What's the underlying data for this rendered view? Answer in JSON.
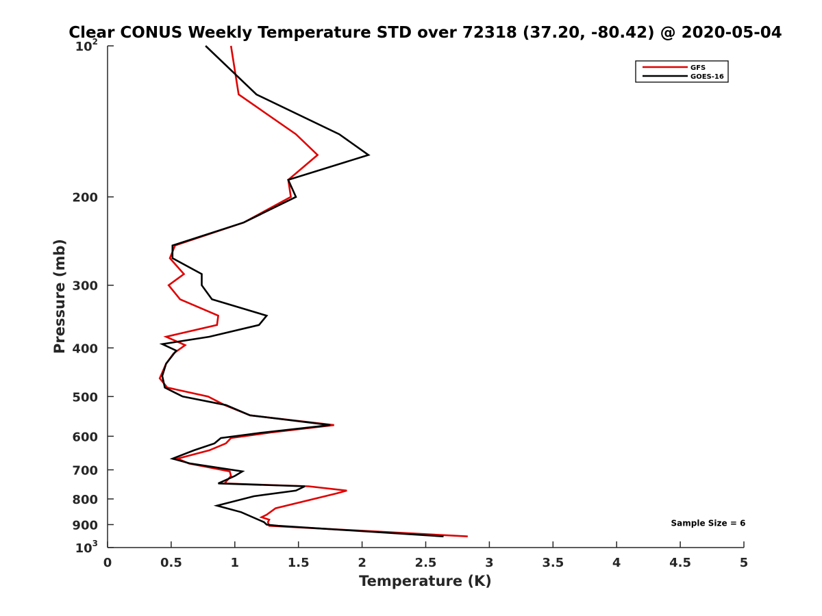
{
  "chart_data": {
    "type": "line",
    "title": "Clear CONUS Weekly Temperature STD over 72318 (37.20, -80.42) @ 2020-05-04",
    "xlabel": "Temperature (K)",
    "ylabel": "Pressure (mb)",
    "xlim": [
      0,
      5
    ],
    "ylim": [
      100,
      1000
    ],
    "y_scale": "log",
    "y_reversed": true,
    "x_ticks": [
      "0",
      "0.5",
      "1",
      "1.5",
      "2",
      "2.5",
      "3",
      "3.5",
      "4",
      "4.5",
      "5"
    ],
    "x_tick_values": [
      0,
      0.5,
      1,
      1.5,
      2,
      2.5,
      3,
      3.5,
      4,
      4.5,
      5
    ],
    "y_ticks": [
      {
        "value": 100,
        "base": "10",
        "exp": "2"
      },
      {
        "value": 200,
        "label": "200"
      },
      {
        "value": 300,
        "label": "300"
      },
      {
        "value": 400,
        "label": "400"
      },
      {
        "value": 500,
        "label": "500"
      },
      {
        "value": 600,
        "label": "600"
      },
      {
        "value": 700,
        "label": "700"
      },
      {
        "value": 800,
        "label": "800"
      },
      {
        "value": 900,
        "label": "900"
      },
      {
        "value": 1000,
        "base": "10",
        "exp": "3"
      }
    ],
    "grid": false,
    "legend_position": "top-right",
    "series": [
      {
        "name": "GFS",
        "color": "#e00000",
        "points": [
          [
            0.97,
            100
          ],
          [
            1.03,
            125
          ],
          [
            1.48,
            150
          ],
          [
            1.65,
            165
          ],
          [
            1.42,
            185
          ],
          [
            1.44,
            200
          ],
          [
            1.07,
            225
          ],
          [
            0.53,
            250
          ],
          [
            0.49,
            265
          ],
          [
            0.6,
            285
          ],
          [
            0.48,
            300
          ],
          [
            0.57,
            320
          ],
          [
            0.87,
            345
          ],
          [
            0.86,
            360
          ],
          [
            0.46,
            380
          ],
          [
            0.61,
            395
          ],
          [
            0.52,
            410
          ],
          [
            0.46,
            430
          ],
          [
            0.41,
            460
          ],
          [
            0.47,
            480
          ],
          [
            0.79,
            500
          ],
          [
            0.92,
            520
          ],
          [
            1.12,
            545
          ],
          [
            1.78,
            570
          ],
          [
            1.28,
            590
          ],
          [
            0.97,
            605
          ],
          [
            0.93,
            620
          ],
          [
            0.8,
            640
          ],
          [
            0.55,
            665
          ],
          [
            0.64,
            680
          ],
          [
            0.96,
            705
          ],
          [
            0.97,
            720
          ],
          [
            0.92,
            745
          ],
          [
            1.58,
            755
          ],
          [
            1.88,
            770
          ],
          [
            1.8,
            780
          ],
          [
            1.32,
            835
          ],
          [
            1.25,
            860
          ],
          [
            1.21,
            870
          ],
          [
            1.27,
            880
          ],
          [
            1.26,
            890
          ],
          [
            1.27,
            905
          ],
          [
            2.83,
            950
          ]
        ]
      },
      {
        "name": "GOES-16",
        "color": "#000000",
        "points": [
          [
            0.77,
            100
          ],
          [
            1.17,
            125
          ],
          [
            1.82,
            150
          ],
          [
            2.05,
            165
          ],
          [
            1.42,
            185
          ],
          [
            1.48,
            200
          ],
          [
            1.07,
            225
          ],
          [
            0.51,
            250
          ],
          [
            0.51,
            265
          ],
          [
            0.74,
            285
          ],
          [
            0.74,
            300
          ],
          [
            0.82,
            320
          ],
          [
            1.25,
            345
          ],
          [
            1.19,
            360
          ],
          [
            0.8,
            380
          ],
          [
            0.43,
            393
          ],
          [
            0.54,
            405
          ],
          [
            0.46,
            430
          ],
          [
            0.43,
            455
          ],
          [
            0.45,
            480
          ],
          [
            0.59,
            500
          ],
          [
            0.93,
            520
          ],
          [
            1.12,
            545
          ],
          [
            1.75,
            570
          ],
          [
            1.22,
            590
          ],
          [
            0.89,
            605
          ],
          [
            0.84,
            620
          ],
          [
            0.68,
            640
          ],
          [
            0.51,
            665
          ],
          [
            0.65,
            680
          ],
          [
            1.06,
            705
          ],
          [
            1.0,
            720
          ],
          [
            0.87,
            745
          ],
          [
            1.55,
            755
          ],
          [
            1.48,
            770
          ],
          [
            1.15,
            790
          ],
          [
            0.86,
            825
          ],
          [
            1.05,
            850
          ],
          [
            1.23,
            890
          ],
          [
            1.25,
            900
          ],
          [
            1.34,
            905
          ],
          [
            2.64,
            950
          ]
        ]
      }
    ],
    "annotations": [
      {
        "text": "Sample Size = 6",
        "x": 4.72,
        "y": 895
      }
    ]
  }
}
